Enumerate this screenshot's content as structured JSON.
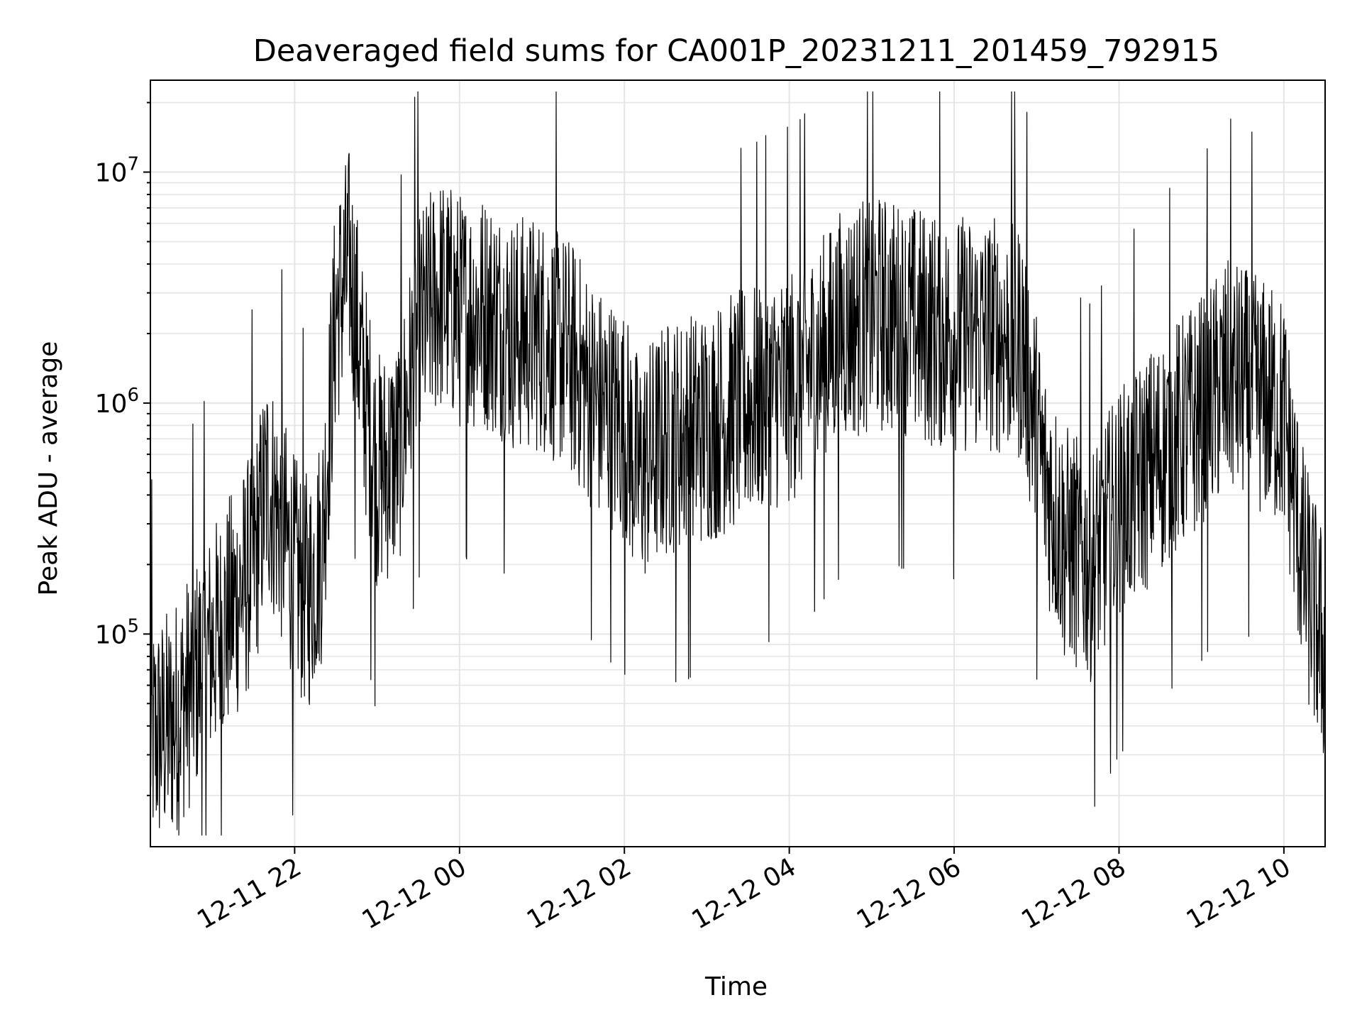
{
  "chart_data": {
    "type": "line",
    "title": "Deaveraged field sums for CA001P_20231211_201459_792915",
    "xlabel": "Time",
    "ylabel": "Peak ADU - average",
    "xlim": [
      "2023-12-11 20:15",
      "2023-12-12 10:30"
    ],
    "ylim": [
      12000,
      25000000
    ],
    "y_scale": "log",
    "grid": true,
    "grid_minor": true,
    "line_color": "#000000",
    "grid_color": "#e5e5e5",
    "x_ticks": [
      {
        "value": "2023-12-11 22:00",
        "label": "12-11 22"
      },
      {
        "value": "2023-12-12 00:00",
        "label": "12-12 00"
      },
      {
        "value": "2023-12-12 02:00",
        "label": "12-12 02"
      },
      {
        "value": "2023-12-12 04:00",
        "label": "12-12 04"
      },
      {
        "value": "2023-12-12 06:00",
        "label": "12-12 06"
      },
      {
        "value": "2023-12-12 08:00",
        "label": "12-12 08"
      },
      {
        "value": "2023-12-12 10:00",
        "label": "12-12 10"
      }
    ],
    "y_ticks": [
      {
        "value": 100000,
        "base": "10",
        "exp": "5"
      },
      {
        "value": 1000000,
        "base": "10",
        "exp": "6"
      },
      {
        "value": 10000000,
        "base": "10",
        "exp": "7"
      }
    ],
    "series": [
      {
        "x": [
          "2023-12-11 20:15",
          "2023-12-11 20:30",
          "2023-12-11 20:45",
          "2023-12-11 21:00",
          "2023-12-11 21:15",
          "2023-12-11 21:30",
          "2023-12-11 21:40",
          "2023-12-11 21:50",
          "2023-12-11 22:00",
          "2023-12-11 22:10",
          "2023-12-11 22:20",
          "2023-12-11 22:30",
          "2023-12-11 22:40",
          "2023-12-11 22:50",
          "2023-12-11 23:00",
          "2023-12-11 23:15",
          "2023-12-11 23:30",
          "2023-12-11 23:45",
          "2023-12-12 00:00",
          "2023-12-12 00:20",
          "2023-12-12 00:40",
          "2023-12-12 01:00",
          "2023-12-12 01:20",
          "2023-12-12 01:40",
          "2023-12-12 02:00",
          "2023-12-12 02:10",
          "2023-12-12 02:30",
          "2023-12-12 03:00",
          "2023-12-12 03:30",
          "2023-12-12 04:00",
          "2023-12-12 04:20",
          "2023-12-12 04:40",
          "2023-12-12 05:00",
          "2023-12-12 05:30",
          "2023-12-12 06:00",
          "2023-12-12 06:30",
          "2023-12-12 06:50",
          "2023-12-12 07:05",
          "2023-12-12 07:20",
          "2023-12-12 07:40",
          "2023-12-12 08:00",
          "2023-12-12 08:30",
          "2023-12-12 09:00",
          "2023-12-12 09:20",
          "2023-12-12 09:40",
          "2023-12-12 10:00",
          "2023-12-12 10:15",
          "2023-12-12 10:30"
        ],
        "y": [
          35000,
          40000,
          60000,
          90000,
          130000,
          200000,
          450000,
          300000,
          180000,
          150000,
          250000,
          2500000,
          4000000,
          1200000,
          500000,
          600000,
          2000000,
          3000000,
          2500000,
          2500000,
          2000000,
          2000000,
          1600000,
          1000000,
          800000,
          500000,
          700000,
          800000,
          1000000,
          1200000,
          1500000,
          2200000,
          2500000,
          2200000,
          2000000,
          2000000,
          1800000,
          500000,
          250000,
          200000,
          350000,
          600000,
          900000,
          1300000,
          1100000,
          900000,
          180000,
          80000
        ]
      }
    ]
  }
}
